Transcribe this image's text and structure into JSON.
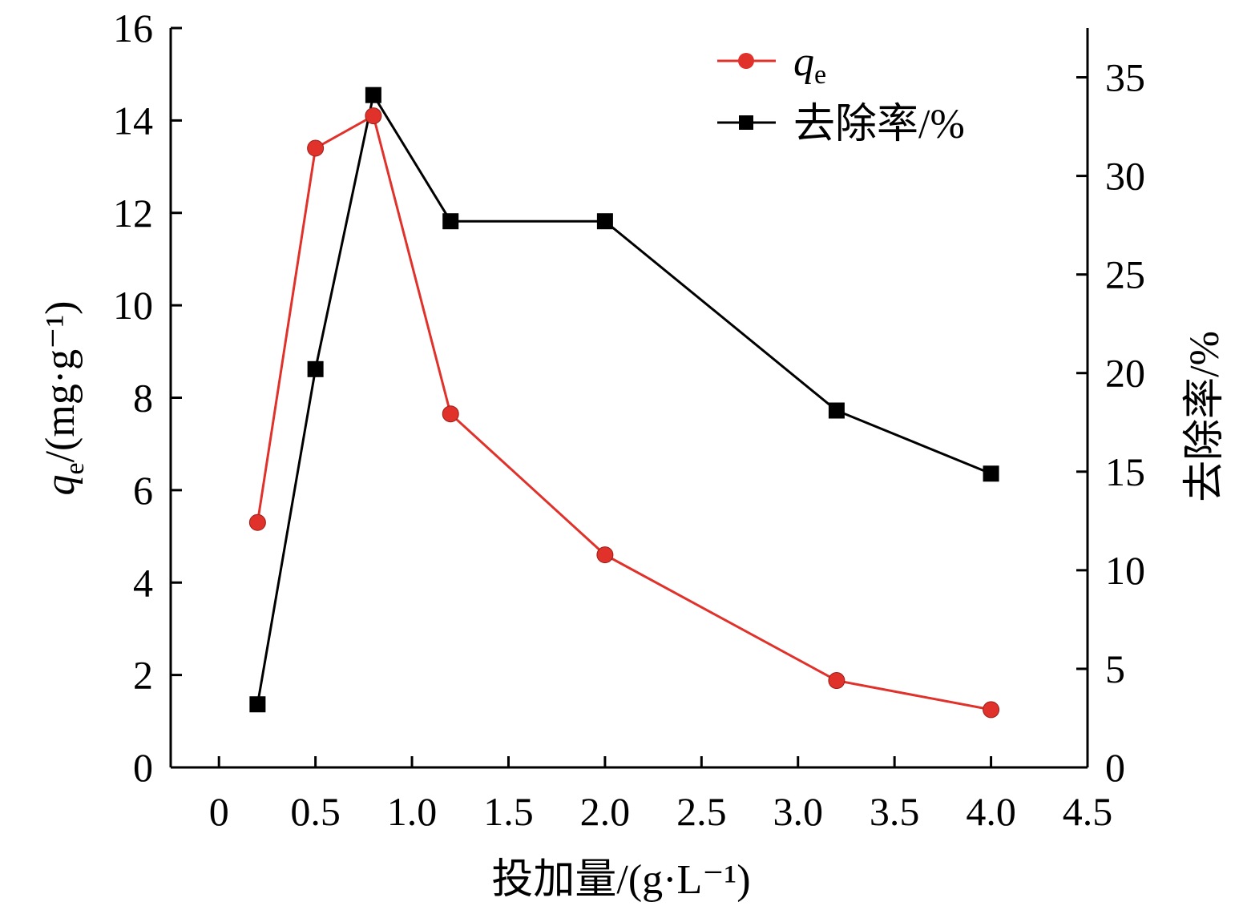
{
  "chart_data": {
    "type": "line",
    "xlabel": "投加量/(g·L⁻¹)",
    "ylabel_left": {
      "var": "q",
      "sub": "e",
      "rest": "/(mg·g⁻¹)"
    },
    "ylabel_right": "去除率/%",
    "xlim": [
      -0.25,
      4.5
    ],
    "ylim_left": [
      0,
      16
    ],
    "ylim_right": [
      0,
      37.5
    ],
    "x_ticks": [
      "0",
      "0.5",
      "1.0",
      "1.5",
      "2.0",
      "2.5",
      "3.0",
      "3.5",
      "4.0",
      "4.5"
    ],
    "x_tick_values": [
      0,
      0.5,
      1.0,
      1.5,
      2.0,
      2.5,
      3.0,
      3.5,
      4.0,
      4.5
    ],
    "y_left_ticks": [
      0,
      2,
      4,
      6,
      8,
      10,
      12,
      14,
      16
    ],
    "y_right_ticks": [
      0,
      5,
      10,
      15,
      20,
      25,
      30,
      35
    ],
    "x": [
      0.2,
      0.5,
      0.8,
      1.2,
      2.0,
      3.2,
      4.0
    ],
    "series": [
      {
        "name": "qe",
        "legend": {
          "var": "q",
          "sub": "e"
        },
        "axis": "left",
        "color": "#e0312b",
        "marker": "circle",
        "values": [
          5.3,
          13.4,
          14.1,
          7.65,
          4.6,
          1.88,
          1.25
        ]
      },
      {
        "name": "去除率/%",
        "legend_text": "去除率/%",
        "axis": "right",
        "color": "#000000",
        "marker": "square",
        "values": [
          3.2,
          20.2,
          34.1,
          27.7,
          27.7,
          18.1,
          14.9
        ]
      }
    ]
  }
}
